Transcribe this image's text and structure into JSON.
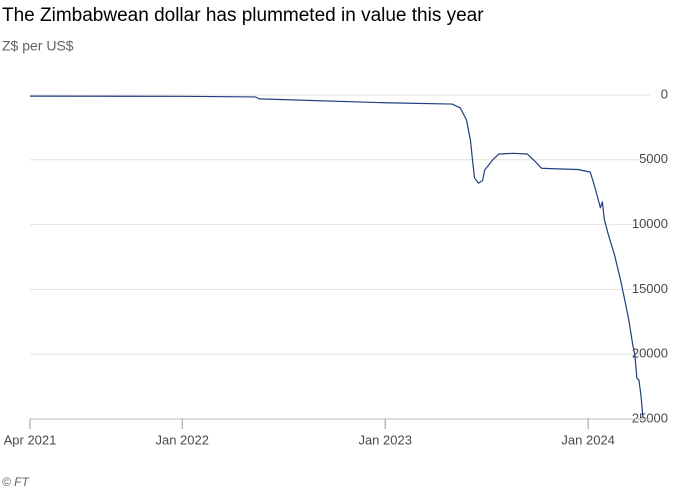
{
  "chart_data": {
    "type": "line",
    "title": "The Zimbabwean dollar has plummeted in value this year",
    "subtitle": "Z$ per US$",
    "source": "© FT",
    "color": "#1f3f7f",
    "grid": true,
    "x": [
      2021.25,
      2022.0,
      2022.36,
      2022.38,
      2023.0,
      2023.33,
      2023.37,
      2023.4,
      2023.42,
      2023.43,
      2023.44,
      2023.46,
      2023.48,
      2023.49,
      2023.53,
      2023.56,
      2023.63,
      2023.7,
      2023.74,
      2023.77,
      2023.85,
      2023.95,
      2024.01,
      2024.03,
      2024.05,
      2024.06,
      2024.07,
      2024.08,
      2024.1,
      2024.13,
      2024.16,
      2024.18,
      2024.2,
      2024.22,
      2024.23,
      2024.24,
      2024.25,
      2024.26,
      2024.27
    ],
    "values": [
      85,
      100,
      150,
      300,
      600,
      700,
      1000,
      1900,
      3500,
      5000,
      6400,
      6800,
      6600,
      5800,
      5000,
      4550,
      4500,
      4550,
      5150,
      5650,
      5700,
      5750,
      5950,
      6950,
      8100,
      8700,
      8250,
      9650,
      10800,
      12350,
      14300,
      15800,
      17350,
      19300,
      20050,
      21850,
      22000,
      23150,
      24900
    ],
    "xlim": [
      2021.25,
      2024.28
    ],
    "xticks": [
      {
        "value": 2021.25,
        "label": "Apr 2021"
      },
      {
        "value": 2022.0,
        "label": "Jan 2022"
      },
      {
        "value": 2023.0,
        "label": "Jan 2023"
      },
      {
        "value": 2024.0,
        "label": "Jan 2024"
      }
    ],
    "ylim": [
      25000,
      0
    ],
    "yticks": [
      0,
      5000,
      10000,
      15000,
      20000,
      25000
    ]
  }
}
